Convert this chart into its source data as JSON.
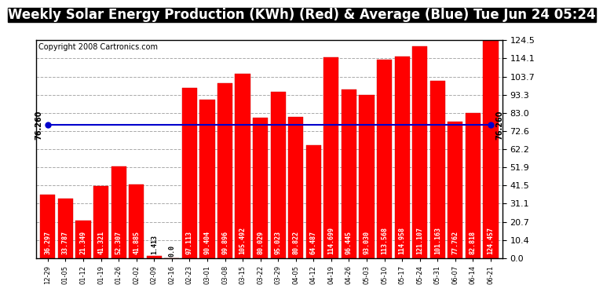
{
  "title": "Weekly Solar Energy Production (KWh) (Red) & Average (Blue) Tue Jun 24 05:24",
  "copyright": "Copyright 2008 Cartronics.com",
  "categories": [
    "12-29",
    "01-05",
    "01-12",
    "01-19",
    "01-26",
    "02-02",
    "02-09",
    "02-16",
    "02-23",
    "03-01",
    "03-08",
    "03-15",
    "03-22",
    "03-29",
    "04-05",
    "04-12",
    "04-19",
    "04-26",
    "05-03",
    "05-10",
    "05-17",
    "05-24",
    "05-31",
    "06-07",
    "06-14",
    "06-21"
  ],
  "values": [
    36.297,
    33.787,
    21.349,
    41.321,
    52.307,
    41.885,
    1.413,
    0.0,
    97.113,
    90.404,
    99.896,
    105.492,
    80.029,
    95.023,
    80.822,
    64.487,
    114.699,
    96.445,
    93.03,
    113.568,
    114.958,
    121.107,
    101.163,
    77.762,
    82.818,
    124.457
  ],
  "average": 76.26,
  "bar_color": "#ff0000",
  "avg_line_color": "#0000cc",
  "bg_color": "#ffffff",
  "title_bg_color": "#000000",
  "title_text_color": "#ffffff",
  "plot_bg_color": "#ffffff",
  "ylim": [
    0.0,
    124.5
  ],
  "yticks": [
    0.0,
    10.4,
    20.7,
    31.1,
    41.5,
    51.9,
    62.2,
    72.6,
    83.0,
    93.3,
    103.7,
    114.1,
    124.5
  ],
  "grid_color": "#aaaaaa",
  "bar_width": 0.85,
  "avg_label": "76.260",
  "title_fontsize": 12,
  "tick_fontsize": 8,
  "bar_label_fontsize": 6,
  "copyright_fontsize": 7
}
